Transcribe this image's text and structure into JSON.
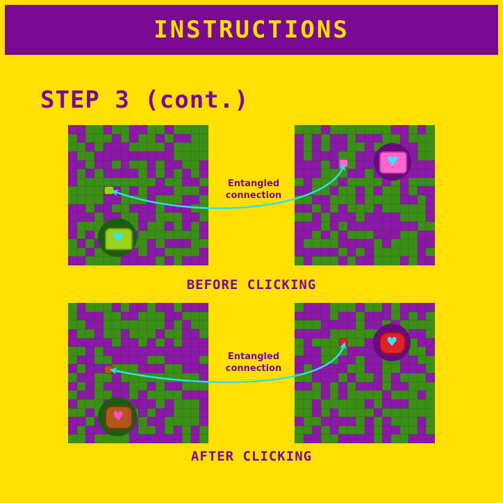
{
  "header": {
    "title": "INSTRUCTIONS"
  },
  "step": {
    "title": "STEP 3 (cont.)"
  },
  "connection_label": {
    "line1": "Entangled",
    "line2": "connection"
  },
  "captions": {
    "before": "BEFORE CLICKING",
    "after": "AFTER CLICKING"
  },
  "colors": {
    "background": "#ffe000",
    "banner": "#7a0a94",
    "grid_green": "#3b8f16",
    "grid_purple": "#8a1aa6",
    "arrow": "#2ee0f0",
    "heart_cyan": "#33e6ff",
    "heart_pink": "#ff4fd2"
  },
  "icons": {
    "heart": "♥",
    "turtle_green": "green-turtle-icon",
    "pig_pink": "pink-pig-icon",
    "turtle_brown": "brown-turtle-icon",
    "pig_red": "red-pig-icon"
  }
}
